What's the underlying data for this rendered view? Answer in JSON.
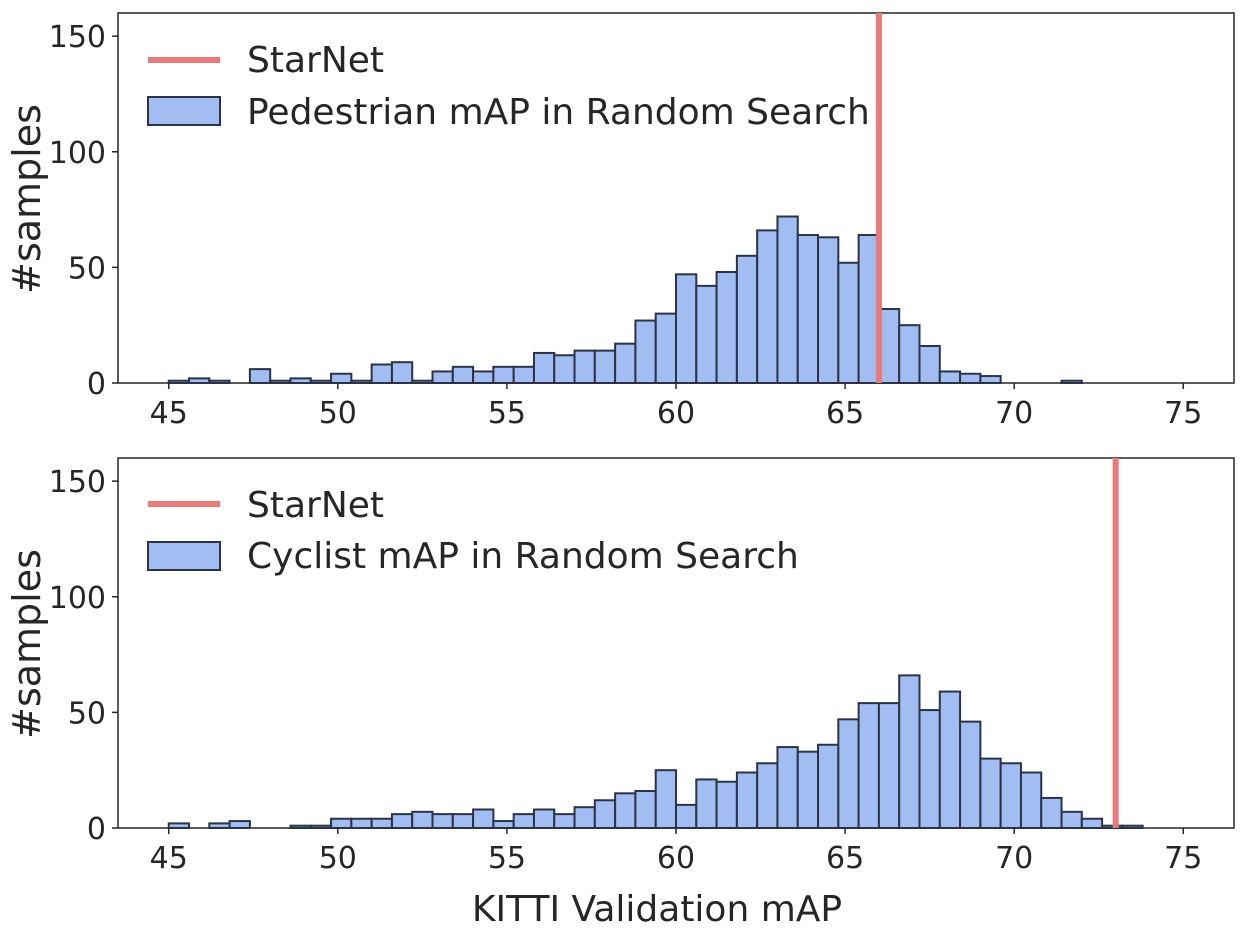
{
  "figure": {
    "xlabel": "KITTI Validation mAP"
  },
  "colors": {
    "bar_fill": "#a1bdf2",
    "bar_edge": "#2b3346",
    "reference_line": "#e87a7a",
    "text": "#262626"
  },
  "chart_data": [
    {
      "type": "bar",
      "histogram": true,
      "title": "",
      "xlabel": "",
      "ylabel": "#samples",
      "xlim": [
        43.5,
        76.5
      ],
      "ylim": [
        0,
        160
      ],
      "xticks": [
        45,
        50,
        55,
        60,
        65,
        70,
        75
      ],
      "yticks": [
        0,
        50,
        100,
        150
      ],
      "bin_start": 45,
      "bin_width": 0.6,
      "series": [
        {
          "name": "Pedestrian mAP in Random Search",
          "values": [
            1,
            2,
            1,
            0,
            6,
            1,
            2,
            1,
            4,
            1,
            8,
            9,
            1,
            5,
            7,
            5,
            7,
            7,
            13,
            12,
            14,
            14,
            17,
            27,
            30,
            47,
            42,
            48,
            55,
            66,
            72,
            64,
            63,
            52,
            64,
            32,
            25,
            16,
            5,
            4,
            3,
            0,
            0,
            0,
            1,
            0,
            0,
            0,
            0,
            0
          ]
        }
      ],
      "reference_line": {
        "name": "StarNet",
        "x": 66.0
      },
      "legend": {
        "position": "upper-left",
        "entries": [
          "StarNet",
          "Pedestrian mAP in Random Search"
        ]
      }
    },
    {
      "type": "bar",
      "histogram": true,
      "title": "",
      "xlabel": "KITTI Validation mAP",
      "ylabel": "#samples",
      "xlim": [
        43.5,
        76.5
      ],
      "ylim": [
        0,
        160
      ],
      "xticks": [
        45,
        50,
        55,
        60,
        65,
        70,
        75
      ],
      "yticks": [
        0,
        50,
        100,
        150
      ],
      "bin_start": 45,
      "bin_width": 0.6,
      "series": [
        {
          "name": "Cyclist mAP in Random Search",
          "values": [
            2,
            0,
            2,
            3,
            0,
            0,
            1,
            1,
            4,
            4,
            4,
            6,
            7,
            6,
            6,
            8,
            3,
            6,
            8,
            6,
            9,
            12,
            15,
            16,
            25,
            10,
            21,
            20,
            24,
            28,
            35,
            33,
            36,
            47,
            54,
            54,
            66,
            51,
            59,
            46,
            30,
            28,
            24,
            13,
            7,
            4,
            1,
            1,
            0,
            0
          ]
        }
      ],
      "reference_line": {
        "name": "StarNet",
        "x": 73.0
      },
      "legend": {
        "position": "upper-left",
        "entries": [
          "StarNet",
          "Cyclist mAP in Random Search"
        ]
      }
    }
  ]
}
